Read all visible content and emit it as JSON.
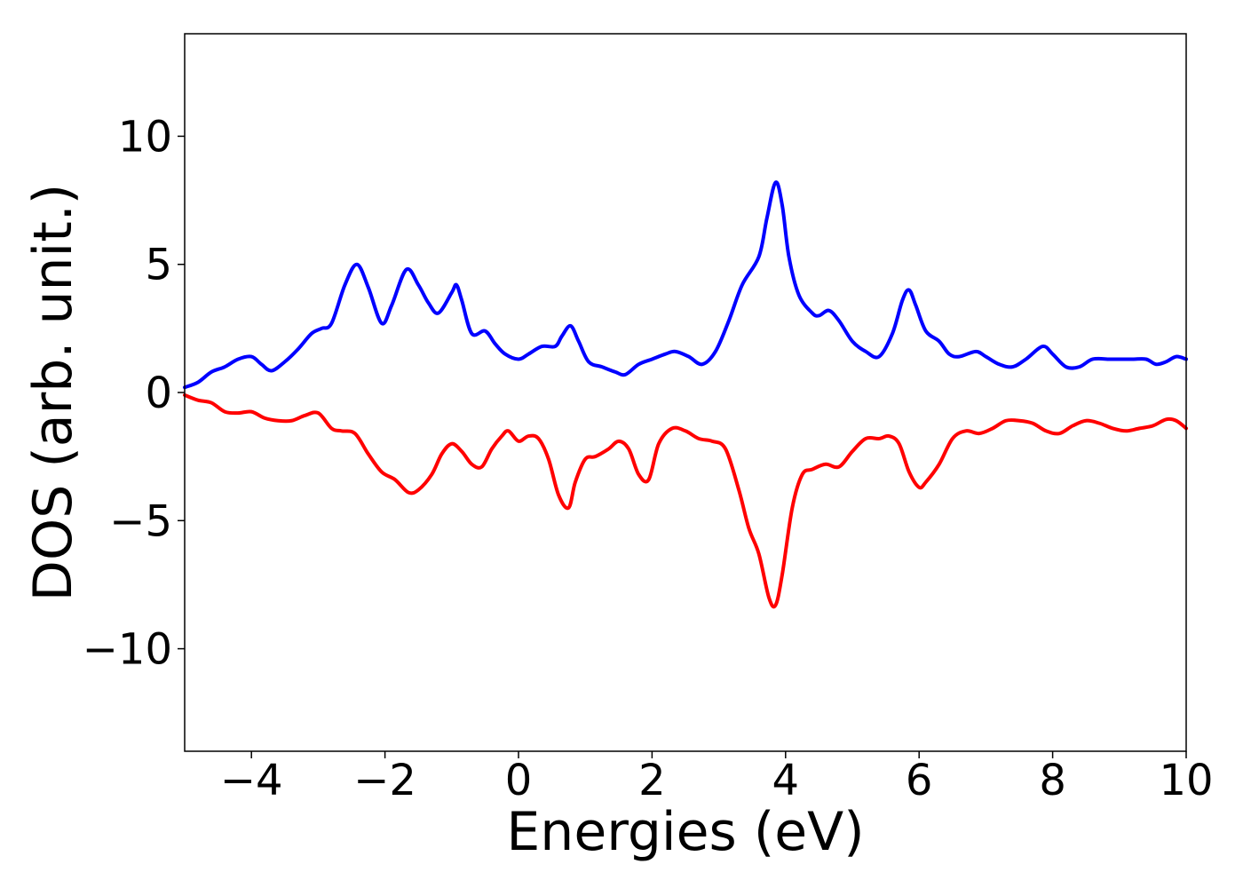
{
  "chart_data": {
    "type": "line",
    "title": "",
    "xlabel": "Energies (eV)",
    "ylabel": "DOS (arb. unit.)",
    "xlim": [
      -5,
      10
    ],
    "ylim": [
      -14,
      14
    ],
    "xticks": [
      -4,
      -2,
      0,
      2,
      4,
      6,
      8,
      10
    ],
    "xtick_labels": [
      "−4",
      "−2",
      "0",
      "2",
      "4",
      "6",
      "8",
      "10"
    ],
    "yticks": [
      -10,
      -5,
      0,
      5,
      10
    ],
    "ytick_labels": [
      "−10",
      "−5",
      "0",
      "5",
      "10"
    ],
    "grid": false,
    "legend": "none",
    "series": [
      {
        "color": "#0000ff",
        "x": [
          -5.0,
          -4.8,
          -4.6,
          -4.4,
          -4.2,
          -4.0,
          -3.85,
          -3.7,
          -3.5,
          -3.3,
          -3.1,
          -2.95,
          -2.8,
          -2.6,
          -2.42,
          -2.25,
          -2.05,
          -1.9,
          -1.68,
          -1.5,
          -1.35,
          -1.2,
          -1.0,
          -0.93,
          -0.85,
          -0.7,
          -0.5,
          -0.35,
          -0.2,
          0.0,
          0.15,
          0.35,
          0.55,
          0.65,
          0.78,
          0.9,
          1.05,
          1.25,
          1.45,
          1.6,
          1.8,
          2.0,
          2.2,
          2.35,
          2.55,
          2.75,
          2.95,
          3.15,
          3.35,
          3.6,
          3.72,
          3.85,
          3.95,
          4.05,
          4.2,
          4.4,
          4.5,
          4.65,
          4.8,
          5.0,
          5.2,
          5.4,
          5.6,
          5.75,
          5.85,
          5.95,
          6.1,
          6.3,
          6.45,
          6.6,
          6.85,
          7.0,
          7.2,
          7.4,
          7.6,
          7.85,
          8.0,
          8.2,
          8.4,
          8.6,
          8.85,
          9.0,
          9.2,
          9.4,
          9.55,
          9.7,
          9.85,
          10.0
        ],
        "values": [
          0.2,
          0.4,
          0.8,
          1.0,
          1.3,
          1.4,
          1.1,
          0.85,
          1.2,
          1.7,
          2.3,
          2.5,
          2.7,
          4.2,
          5.0,
          4.1,
          2.7,
          3.4,
          4.8,
          4.2,
          3.5,
          3.1,
          3.9,
          4.2,
          3.6,
          2.3,
          2.4,
          1.9,
          1.5,
          1.3,
          1.5,
          1.8,
          1.8,
          2.2,
          2.6,
          2.0,
          1.2,
          1.0,
          0.8,
          0.7,
          1.1,
          1.3,
          1.5,
          1.6,
          1.4,
          1.1,
          1.6,
          2.8,
          4.2,
          5.3,
          6.8,
          8.2,
          7.3,
          5.3,
          3.8,
          3.1,
          3.0,
          3.2,
          2.8,
          2.0,
          1.6,
          1.4,
          2.3,
          3.6,
          4.0,
          3.4,
          2.4,
          2.0,
          1.5,
          1.4,
          1.6,
          1.4,
          1.1,
          1.0,
          1.3,
          1.8,
          1.5,
          1.0,
          1.0,
          1.3,
          1.3,
          1.3,
          1.3,
          1.3,
          1.1,
          1.2,
          1.4,
          1.3
        ]
      },
      {
        "color": "#ff0000",
        "x": [
          -5.0,
          -4.8,
          -4.6,
          -4.4,
          -4.2,
          -4.0,
          -3.8,
          -3.6,
          -3.4,
          -3.2,
          -3.0,
          -2.8,
          -2.65,
          -2.45,
          -2.25,
          -2.05,
          -1.85,
          -1.65,
          -1.5,
          -1.3,
          -1.15,
          -1.0,
          -0.85,
          -0.7,
          -0.55,
          -0.4,
          -0.25,
          -0.15,
          0.0,
          0.15,
          0.3,
          0.45,
          0.6,
          0.75,
          0.85,
          1.0,
          1.15,
          1.35,
          1.5,
          1.65,
          1.8,
          1.95,
          2.1,
          2.3,
          2.5,
          2.7,
          2.9,
          3.1,
          3.3,
          3.45,
          3.6,
          3.75,
          3.85,
          3.95,
          4.1,
          4.25,
          4.4,
          4.6,
          4.8,
          5.0,
          5.2,
          5.4,
          5.55,
          5.7,
          5.85,
          6.0,
          6.1,
          6.3,
          6.5,
          6.7,
          6.9,
          7.1,
          7.3,
          7.5,
          7.7,
          7.9,
          8.1,
          8.3,
          8.5,
          8.7,
          8.9,
          9.1,
          9.3,
          9.5,
          9.7,
          9.85,
          10.0
        ],
        "values": [
          -0.1,
          -0.3,
          -0.4,
          -0.75,
          -0.8,
          -0.75,
          -1.0,
          -1.1,
          -1.1,
          -0.9,
          -0.8,
          -1.4,
          -1.5,
          -1.6,
          -2.4,
          -3.1,
          -3.4,
          -3.9,
          -3.8,
          -3.2,
          -2.4,
          -2.0,
          -2.3,
          -2.8,
          -2.9,
          -2.2,
          -1.7,
          -1.5,
          -1.9,
          -1.7,
          -1.8,
          -2.6,
          -4.0,
          -4.5,
          -3.5,
          -2.6,
          -2.5,
          -2.2,
          -1.9,
          -2.2,
          -3.2,
          -3.4,
          -2.0,
          -1.4,
          -1.5,
          -1.8,
          -1.9,
          -2.2,
          -3.8,
          -5.3,
          -6.3,
          -8.0,
          -8.3,
          -7.1,
          -4.5,
          -3.2,
          -3.0,
          -2.8,
          -2.9,
          -2.3,
          -1.8,
          -1.8,
          -1.7,
          -2.0,
          -3.1,
          -3.7,
          -3.5,
          -2.8,
          -1.8,
          -1.5,
          -1.6,
          -1.4,
          -1.1,
          -1.1,
          -1.2,
          -1.5,
          -1.6,
          -1.3,
          -1.1,
          -1.2,
          -1.4,
          -1.5,
          -1.4,
          -1.3,
          -1.05,
          -1.1,
          -1.4
        ]
      }
    ]
  }
}
